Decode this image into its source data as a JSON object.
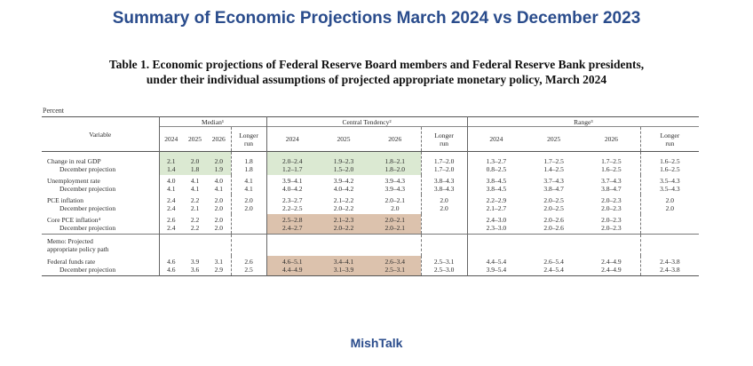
{
  "headline": "Summary of Economic Projections March 2024 vs December 2023",
  "caption_line1": "Table 1. Economic projections of Federal Reserve Board members and Federal Reserve Bank presidents,",
  "caption_line2": "under their individual assumptions of projected appropriate monetary policy, March 2024",
  "units": "Percent",
  "footer": "MishTalk",
  "header": {
    "variable": "Variable",
    "median": "Median¹",
    "central_tendency": "Central Tendency²",
    "range": "Range³",
    "y2024": "2024",
    "y2025": "2025",
    "y2026": "2026",
    "longer_run_1": "Longer",
    "longer_run_2": "run"
  },
  "highlight_colors": {
    "green": "#dbe9d2",
    "tan": "#dcc2ad"
  },
  "rows": [
    {
      "label": "Change in real GDP",
      "sub_label": "December projection",
      "median": [
        [
          "2.1",
          "1.4"
        ],
        [
          "2.0",
          "1.8"
        ],
        [
          "2.0",
          "1.9"
        ],
        [
          "1.8",
          "1.8"
        ]
      ],
      "central": [
        [
          "2.0–2.4",
          "1.2–1.7"
        ],
        [
          "1.9–2.3",
          "1.5–2.0"
        ],
        [
          "1.8–2.1",
          "1.8–2.0"
        ],
        [
          "1.7–2.0",
          "1.7–2.0"
        ]
      ],
      "range": [
        [
          "1.3–2.7",
          "0.8–2.5"
        ],
        [
          "1.7–2.5",
          "1.4–2.5"
        ],
        [
          "1.7–2.5",
          "1.6–2.5"
        ],
        [
          "1.6–2.5",
          "1.6–2.5"
        ]
      ]
    },
    {
      "label": "Unemployment rate",
      "sub_label": "December projection",
      "median": [
        [
          "4.0",
          "4.1"
        ],
        [
          "4.1",
          "4.1"
        ],
        [
          "4.0",
          "4.1"
        ],
        [
          "4.1",
          "4.1"
        ]
      ],
      "central": [
        [
          "3.9–4.1",
          "4.0–4.2"
        ],
        [
          "3.9–4.2",
          "4.0–4.2"
        ],
        [
          "3.9–4.3",
          "3.9–4.3"
        ],
        [
          "3.8–4.3",
          "3.8–4.3"
        ]
      ],
      "range": [
        [
          "3.8–4.5",
          "3.8–4.5"
        ],
        [
          "3.7–4.3",
          "3.8–4.7"
        ],
        [
          "3.7–4.3",
          "3.8–4.7"
        ],
        [
          "3.5–4.3",
          "3.5–4.3"
        ]
      ]
    },
    {
      "label": "PCE inflation",
      "sub_label": "December projection",
      "median": [
        [
          "2.4",
          "2.4"
        ],
        [
          "2.2",
          "2.1"
        ],
        [
          "2.0",
          "2.0"
        ],
        [
          "2.0",
          "2.0"
        ]
      ],
      "central": [
        [
          "2.3–2.7",
          "2.2–2.5"
        ],
        [
          "2.1–2.2",
          "2.0–2.2"
        ],
        [
          "2.0–2.1",
          "2.0"
        ],
        [
          "2.0",
          "2.0"
        ]
      ],
      "range": [
        [
          "2.2–2.9",
          "2.1–2.7"
        ],
        [
          "2.0–2.5",
          "2.0–2.5"
        ],
        [
          "2.0–2.3",
          "2.0–2.3"
        ],
        [
          "2.0",
          "2.0"
        ]
      ]
    },
    {
      "label": "Core PCE inflation⁴",
      "sub_label": "December projection",
      "median": [
        [
          "2.6",
          "2.4"
        ],
        [
          "2.2",
          "2.2"
        ],
        [
          "2.0",
          "2.0"
        ],
        [
          "",
          ""
        ]
      ],
      "central": [
        [
          "2.5–2.8",
          "2.4–2.7"
        ],
        [
          "2.1–2.3",
          "2.0–2.2"
        ],
        [
          "2.0–2.1",
          "2.0–2.1"
        ],
        [
          "",
          ""
        ]
      ],
      "range": [
        [
          "2.4–3.0",
          "2.3–3.0"
        ],
        [
          "2.0–2.6",
          "2.0–2.6"
        ],
        [
          "2.0–2.3",
          "2.0–2.3"
        ],
        [
          "",
          ""
        ]
      ]
    },
    {
      "label": "Federal funds rate",
      "sub_label": "December projection",
      "median": [
        [
          "4.6",
          "4.6"
        ],
        [
          "3.9",
          "3.6"
        ],
        [
          "3.1",
          "2.9"
        ],
        [
          "2.6",
          "2.5"
        ]
      ],
      "central": [
        [
          "4.6–5.1",
          "4.4–4.9"
        ],
        [
          "3.4–4.1",
          "3.1–3.9"
        ],
        [
          "2.6–3.4",
          "2.5–3.1"
        ],
        [
          "2.5–3.1",
          "2.5–3.0"
        ]
      ],
      "range": [
        [
          "4.4–5.4",
          "3.9–5.4"
        ],
        [
          "2.6–5.4",
          "2.4–5.4"
        ],
        [
          "2.4–4.9",
          "2.4–4.9"
        ],
        [
          "2.4–3.8",
          "2.4–3.8"
        ]
      ]
    }
  ],
  "memo": {
    "line1": "Memo: Projected",
    "line2": "appropriate policy path"
  }
}
